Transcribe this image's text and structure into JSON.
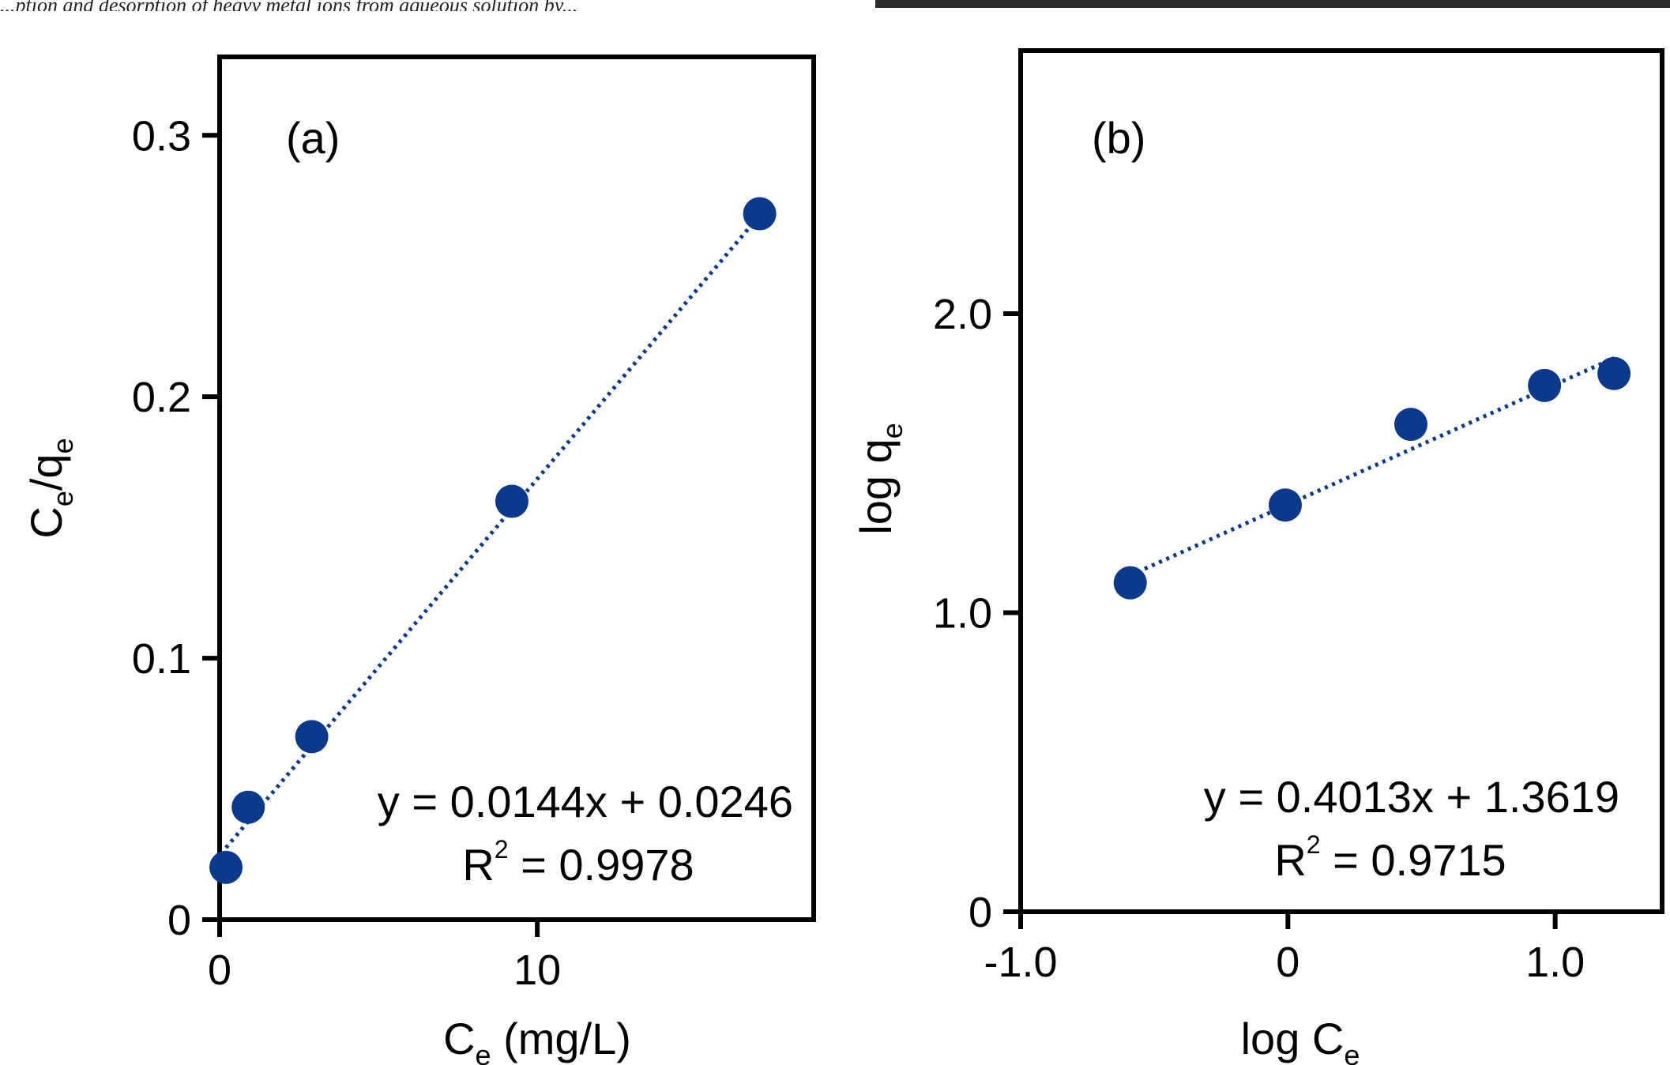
{
  "header_fragment": "...ption and desorption of heavy metal ions from aqueous solution by...",
  "chart_data": [
    {
      "panel": "(a)",
      "type": "scatter",
      "trendline": "dotted",
      "xlabel_main": "C",
      "xlabel_sub": "e",
      "xlabel_tail": " (mg/L)",
      "ylabel_main": "C",
      "ylabel_sub": "e",
      "ylabel_mid": "/q",
      "ylabel_sub2": "e",
      "xlim": [
        0,
        18.7
      ],
      "ylim": [
        0,
        0.33
      ],
      "xticks": [
        0,
        10
      ],
      "xtick_labels": [
        "0",
        "10"
      ],
      "yticks": [
        0,
        0.1,
        0.2,
        0.3
      ],
      "ytick_labels": [
        "0",
        "0.1",
        "0.2",
        "0.3"
      ],
      "x": [
        0.2,
        0.9,
        2.9,
        9.2,
        17.0
      ],
      "y": [
        0.02,
        0.043,
        0.07,
        0.16,
        0.27
      ],
      "fit": {
        "slope": 0.0144,
        "intercept": 0.0246
      },
      "equation": "y = 0.0144x + 0.0246",
      "r2_prefix": "R",
      "r2_sup": "2",
      "r2_value": " = 0.9978",
      "marker_color": "#0b3a8c"
    },
    {
      "panel": "(b)",
      "type": "scatter",
      "trendline": "dotted",
      "xlabel_main": "log C",
      "xlabel_sub": "e",
      "ylabel_main": "log q",
      "ylabel_sub": "e",
      "xlim": [
        -1.0,
        1.4
      ],
      "ylim": [
        0,
        2.88
      ],
      "xticks": [
        -1.0,
        0,
        1.0
      ],
      "xtick_labels": [
        "-1.0",
        "0",
        "1.0"
      ],
      "yticks": [
        0,
        1.0,
        2.0
      ],
      "ytick_labels": [
        "0",
        "1.0",
        "2.0"
      ],
      "x": [
        -0.59,
        -0.01,
        0.46,
        0.96,
        1.22
      ],
      "y": [
        1.1,
        1.36,
        1.63,
        1.76,
        1.8
      ],
      "fit": {
        "slope": 0.4013,
        "intercept": 1.3619
      },
      "equation": "y = 0.4013x + 1.3619",
      "r2_prefix": "R",
      "r2_sup": "2",
      "r2_value": " = 0.9715",
      "marker_color": "#0b3a8c"
    }
  ]
}
